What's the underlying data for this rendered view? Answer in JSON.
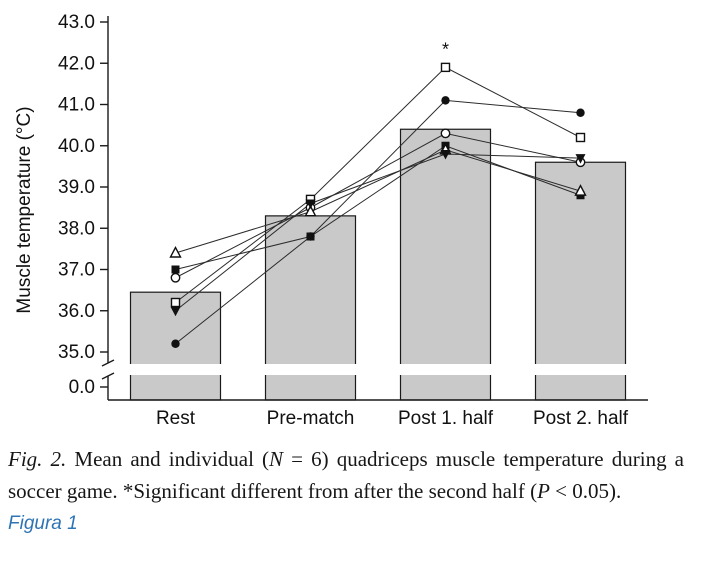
{
  "colors": {
    "bar_fill": "#c9c9c9",
    "bar_stroke": "#1a1a1a",
    "line": "#2b2b2b",
    "marker": "#111111",
    "figure_label": "#2e74b5",
    "caption_text": "#161616"
  },
  "chart_data": {
    "type": "bar",
    "title": "",
    "xlabel": "",
    "ylabel": "Muscle temperature (°C)",
    "categories": [
      "Rest",
      "Pre-match",
      "Post 1. half",
      "Post 2. half"
    ],
    "bar_means": [
      36.45,
      38.3,
      40.4,
      39.6
    ],
    "yticks": [
      0.0,
      35.0,
      36.0,
      37.0,
      38.0,
      39.0,
      40.0,
      41.0,
      42.0,
      43.0
    ],
    "ylim": [
      35.0,
      43.0
    ],
    "axis_break": true,
    "grid": false,
    "legend": "none",
    "series": [
      {
        "name": "subject-filled-circle",
        "marker": "circle-filled",
        "values": [
          35.2,
          37.8,
          41.1,
          40.8
        ]
      },
      {
        "name": "subject-open-circle",
        "marker": "circle-open",
        "values": [
          36.8,
          38.5,
          40.3,
          39.6
        ]
      },
      {
        "name": "subject-filled-square",
        "marker": "square-filled",
        "values": [
          37.0,
          37.8,
          40.0,
          38.8
        ]
      },
      {
        "name": "subject-open-square",
        "marker": "square-open",
        "values": [
          36.2,
          38.7,
          41.9,
          40.2
        ]
      },
      {
        "name": "subject-open-triangle",
        "marker": "triangle-open",
        "values": [
          37.4,
          38.4,
          39.9,
          38.9
        ]
      },
      {
        "name": "subject-filled-down-triangle",
        "marker": "triangle-down-filled",
        "values": [
          36.0,
          38.6,
          39.8,
          39.7
        ]
      }
    ],
    "annotation": {
      "text": "*",
      "category_index": 2,
      "series": "subject-open-square"
    }
  },
  "caption": {
    "parts": [
      {
        "text": "Fig. 2.",
        "italic": true
      },
      {
        "text": " Mean and individual (",
        "italic": false
      },
      {
        "text": "N",
        "italic": true
      },
      {
        "text": " = 6) quadriceps muscle temperature during a soccer game. *Significant different from after the second half (",
        "italic": false
      },
      {
        "text": "P",
        "italic": true
      },
      {
        "text": " < 0.05).",
        "italic": false
      }
    ]
  },
  "figure_label": "Figura 1"
}
